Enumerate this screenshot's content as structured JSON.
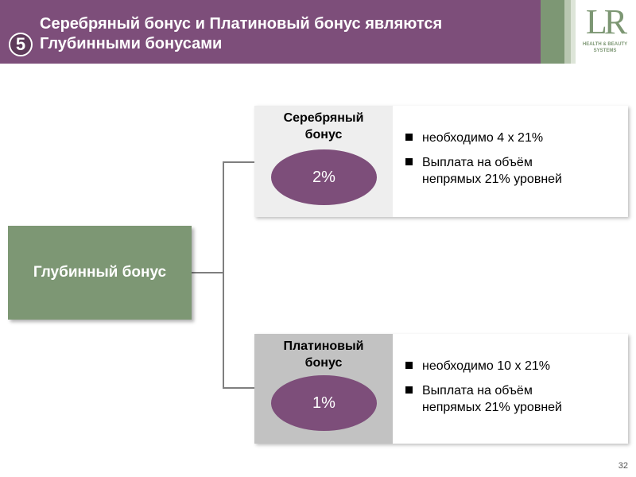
{
  "header": {
    "step": "5",
    "title_lines": [
      "Серебряный бонус и Платиновый бонус являются",
      "Глубинными бонусами"
    ],
    "accent_color": "#7d4e7a"
  },
  "logo": {
    "mark": "LR",
    "tagline_lines": [
      "HEALTH & BEAUTY",
      "SYSTEMS"
    ],
    "color": "#7d9774"
  },
  "root": {
    "label": "Глубинный бонус"
  },
  "cards": [
    {
      "name_lines": [
        "Серебряный",
        "бонус"
      ],
      "percent": "2%",
      "bg": "#eeeeee",
      "bullets": [
        {
          "lines": [
            "необходимо 4 х 21%"
          ]
        },
        {
          "lines": [
            "Выплата на объём",
            "непрямых 21% уровней"
          ]
        }
      ]
    },
    {
      "name_lines": [
        "Платиновый",
        "бонус"
      ],
      "percent": "1%",
      "bg": "#c2c2c2",
      "bullets": [
        {
          "lines": [
            "необходимо 10 х 21%"
          ]
        },
        {
          "lines": [
            "Выплата на объём",
            "непрямых 21% уровней"
          ]
        }
      ]
    }
  ],
  "page_number": "32"
}
